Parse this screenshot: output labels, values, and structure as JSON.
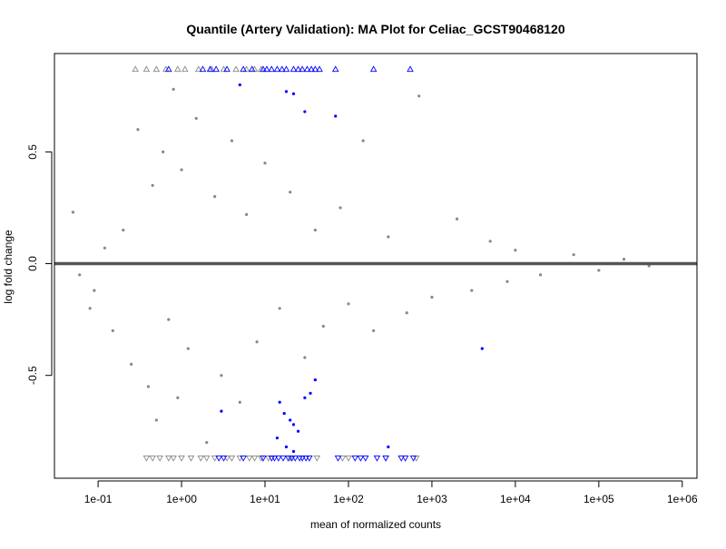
{
  "chart_data": {
    "type": "scatter",
    "title": "Quantile (Artery Validation): MA Plot for Celiac_GCST90468120",
    "xlabel": "mean of normalized counts",
    "ylabel": "log fold change",
    "x_scale": "log10",
    "xlim": [
      0.03,
      1500000
    ],
    "ylim": [
      -0.96,
      0.94
    ],
    "x_ticks": [
      "1e-01",
      "1e+00",
      "1e+01",
      "1e+02",
      "1e+03",
      "1e+04",
      "1e+05",
      "1e+06"
    ],
    "y_ticks": [
      "-0.5",
      "0.0",
      "0.5"
    ],
    "reference_line": {
      "y": 0.0,
      "color": "#555555"
    },
    "series": [
      {
        "role": "non-significant",
        "color": "#888888",
        "marker": "dot",
        "points": [
          [
            0.05,
            0.23
          ],
          [
            0.06,
            -0.05
          ],
          [
            0.08,
            -0.2
          ],
          [
            0.09,
            -0.12
          ],
          [
            0.12,
            0.07
          ],
          [
            0.15,
            -0.3
          ],
          [
            0.2,
            0.15
          ],
          [
            0.25,
            -0.45
          ],
          [
            0.3,
            0.6
          ],
          [
            0.4,
            -0.55
          ],
          [
            0.45,
            0.35
          ],
          [
            0.5,
            -0.7
          ],
          [
            0.6,
            0.5
          ],
          [
            0.7,
            -0.25
          ],
          [
            0.8,
            0.78
          ],
          [
            0.9,
            -0.6
          ],
          [
            1.0,
            0.42
          ],
          [
            1.2,
            -0.38
          ],
          [
            1.5,
            0.65
          ],
          [
            2.0,
            -0.8
          ],
          [
            2.5,
            0.3
          ],
          [
            3.0,
            -0.5
          ],
          [
            4.0,
            0.55
          ],
          [
            5.0,
            -0.62
          ],
          [
            6.0,
            0.22
          ],
          [
            8.0,
            -0.35
          ],
          [
            10.0,
            0.45
          ],
          [
            15.0,
            -0.2
          ],
          [
            20.0,
            0.32
          ],
          [
            30.0,
            -0.42
          ],
          [
            40.0,
            0.15
          ],
          [
            50.0,
            -0.28
          ],
          [
            80.0,
            0.25
          ],
          [
            100.0,
            -0.18
          ],
          [
            150.0,
            0.55
          ],
          [
            200.0,
            -0.3
          ],
          [
            300.0,
            0.12
          ],
          [
            500.0,
            -0.22
          ],
          [
            700.0,
            0.75
          ],
          [
            1000.0,
            -0.15
          ],
          [
            2000.0,
            0.2
          ],
          [
            3000.0,
            -0.12
          ],
          [
            5000.0,
            0.1
          ],
          [
            8000.0,
            -0.08
          ],
          [
            10000.0,
            0.06
          ],
          [
            20000.0,
            -0.05
          ],
          [
            50000.0,
            0.04
          ],
          [
            100000.0,
            -0.03
          ],
          [
            200000.0,
            0.02
          ],
          [
            400000.0,
            -0.01
          ]
        ]
      },
      {
        "role": "significant",
        "color": "#0000ff",
        "marker": "dot",
        "points": [
          [
            5.0,
            0.8
          ],
          [
            18.0,
            0.77
          ],
          [
            22.0,
            0.76
          ],
          [
            30.0,
            0.68
          ],
          [
            70.0,
            0.66
          ],
          [
            4000.0,
            -0.38
          ],
          [
            15.0,
            -0.62
          ],
          [
            17.0,
            -0.67
          ],
          [
            20.0,
            -0.7
          ],
          [
            22.0,
            -0.72
          ],
          [
            25.0,
            -0.75
          ],
          [
            30.0,
            -0.6
          ],
          [
            35.0,
            -0.58
          ],
          [
            40.0,
            -0.52
          ],
          [
            3.0,
            -0.66
          ],
          [
            14.0,
            -0.78
          ],
          [
            18.0,
            -0.82
          ],
          [
            22.0,
            -0.84
          ],
          [
            300.0,
            -0.82
          ]
        ]
      },
      {
        "role": "clipped-up",
        "marker": "triangle-up",
        "y": 0.87,
        "grey_x": [
          0.28,
          0.38,
          0.5,
          0.65,
          0.9,
          1.1,
          1.6,
          2.3,
          3.2,
          4.5,
          6.0,
          7.5,
          9.0
        ],
        "blue_x": [
          0.7,
          1.8,
          2.2,
          2.6,
          3.5,
          5.5,
          7.0,
          9.5,
          10.5,
          12.0,
          14.0,
          16.0,
          18.0,
          22.0,
          25.0,
          28.0,
          32.0,
          36.0,
          40.0,
          45.0,
          70.0,
          200.0,
          550.0
        ]
      },
      {
        "role": "clipped-down",
        "marker": "triangle-down",
        "y": -0.87,
        "grey_x": [
          0.38,
          0.45,
          0.55,
          0.7,
          0.8,
          1.0,
          1.3,
          1.7,
          2.0,
          2.5,
          3.5,
          4.0,
          5.0,
          6.5,
          7.5,
          9.0,
          11.0,
          20.0,
          42.0,
          85.0,
          100.0,
          280.0,
          650.0
        ],
        "blue_x": [
          2.8,
          3.2,
          5.5,
          9.5,
          12.0,
          13.0,
          14.5,
          16.5,
          19.0,
          21.0,
          23.0,
          26.0,
          28.0,
          31.0,
          34.0,
          75.0,
          120.0,
          140.0,
          160.0,
          220.0,
          280.0,
          430.0,
          480.0,
          600.0
        ]
      }
    ]
  }
}
